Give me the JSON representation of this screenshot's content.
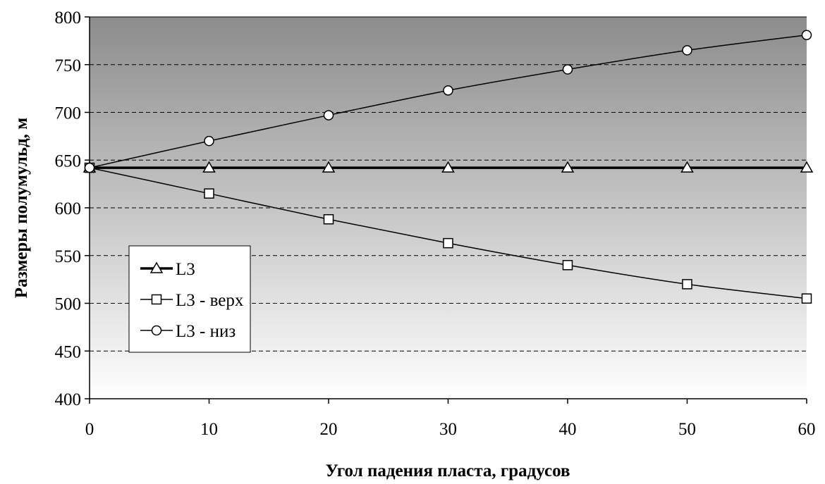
{
  "chart_data": {
    "type": "line",
    "title": "",
    "xlabel": "Угол падения пласта, градусов",
    "ylabel": "Размеры полумульд, м",
    "x": [
      0,
      10,
      20,
      30,
      40,
      50,
      60
    ],
    "xlim": [
      0,
      60
    ],
    "ylim": [
      400,
      800
    ],
    "x_ticks": [
      0,
      10,
      20,
      30,
      40,
      50,
      60
    ],
    "y_ticks": [
      400,
      450,
      500,
      550,
      600,
      650,
      700,
      750,
      800
    ],
    "grid": "horizontal dashed",
    "legend_position": "left-center",
    "background": "vertical gradient, dark gray top to white bottom",
    "series": [
      {
        "name": "L3",
        "marker": "triangle",
        "line": "thick",
        "color": "#000000",
        "values": [
          642,
          642,
          642,
          642,
          642,
          642,
          642
        ]
      },
      {
        "name": "L3 - верх",
        "marker": "square",
        "line": "thin",
        "color": "#000000",
        "values": [
          642,
          615,
          588,
          563,
          540,
          520,
          505
        ]
      },
      {
        "name": "L3 - низ",
        "marker": "circle",
        "line": "thin",
        "color": "#000000",
        "values": [
          642,
          670,
          697,
          723,
          745,
          765,
          781
        ]
      }
    ]
  }
}
